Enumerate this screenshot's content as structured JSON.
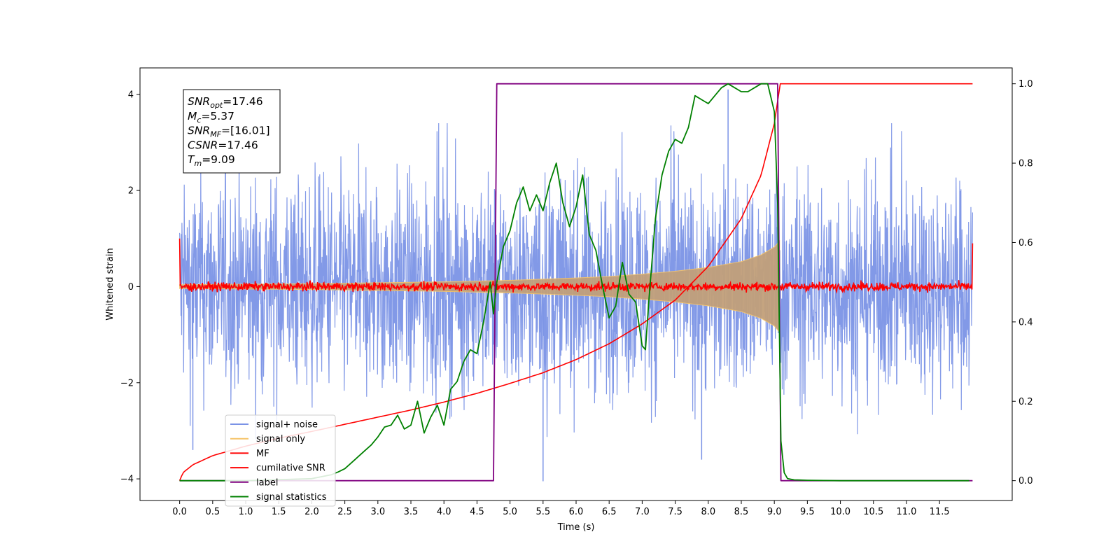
{
  "chart_data": {
    "type": "line",
    "xlabel": "Time (s)",
    "ylabel_left": "Whitened strain",
    "ylabel_right": "",
    "xlim": [
      -0.6,
      12.6
    ],
    "ylim_left": [
      -4.45,
      4.55
    ],
    "ylim_right": [
      -0.05,
      1.04
    ],
    "x_ticks": [
      0.0,
      0.5,
      1.0,
      1.5,
      2.0,
      2.5,
      3.0,
      3.5,
      4.0,
      4.5,
      5.0,
      5.5,
      6.0,
      6.5,
      7.0,
      7.5,
      8.0,
      8.5,
      9.0,
      9.5,
      10.0,
      10.5,
      11.0,
      11.5
    ],
    "x_tick_labels": [
      "0.0",
      "0.5",
      "1.0",
      "1.5",
      "2.0",
      "2.5",
      "3.0",
      "3.5",
      "4.0",
      "4.5",
      "5.0",
      "5.5",
      "6.0",
      "6.5",
      "7.0",
      "7.5",
      "8.0",
      "8.5",
      "9.0",
      "9.5",
      "10.0",
      "10.5",
      "11.0",
      "11.5"
    ],
    "y_ticks_left": [
      -4,
      -2,
      0,
      2,
      4
    ],
    "y_tick_labels_left": [
      "−4",
      "−2",
      "0",
      "2",
      "4"
    ],
    "y_ticks_right": [
      0.0,
      0.2,
      0.4,
      0.6,
      0.8,
      1.0
    ],
    "y_tick_labels_right": [
      "0.0",
      "0.2",
      "0.4",
      "0.6",
      "0.8",
      "1.0"
    ],
    "grid": false,
    "legend_position": "lower-left",
    "annotation_box": [
      {
        "base": "SNR",
        "sub": "opt",
        "value": "=17.46"
      },
      {
        "base": "M",
        "sub": "c",
        "value": "=5.37"
      },
      {
        "base": "SNR",
        "sub": "MF",
        "value": "=[16.01]"
      },
      {
        "base": "CSNR",
        "sub": "",
        "value": "=17.46"
      },
      {
        "base": "T",
        "sub": "m",
        "value": "=9.09"
      }
    ],
    "series": [
      {
        "name": "signal+ noise",
        "axis": "left",
        "color": "#7b93e6",
        "kind": "noise band",
        "x_range": [
          0.0,
          12.0
        ],
        "typical_range": [
          -1.8,
          1.8
        ],
        "peaks": [
          {
            "x": 8.3,
            "y": 4.1
          },
          {
            "x": 5.5,
            "y": -4.05
          },
          {
            "x": 7.9,
            "y": -3.6
          },
          {
            "x": 0.2,
            "y": -3.4
          }
        ]
      },
      {
        "name": "signal only",
        "axis": "left",
        "color": "#f5c469",
        "kind": "chirp envelope",
        "x": [
          0.0,
          2.0,
          4.0,
          5.0,
          6.0,
          6.5,
          7.0,
          7.5,
          8.0,
          8.5,
          8.8,
          9.0,
          9.08
        ],
        "envelope": [
          0.04,
          0.06,
          0.1,
          0.13,
          0.18,
          0.21,
          0.26,
          0.32,
          0.4,
          0.52,
          0.66,
          0.82,
          0.95
        ]
      },
      {
        "name": "MF",
        "axis": "left",
        "color": "#ff0000",
        "kind": "noise trace",
        "x_range": [
          0.0,
          12.0
        ],
        "typical_range": [
          -0.1,
          0.1
        ],
        "edge_values": [
          {
            "x": 0.0,
            "y": 1.0
          },
          {
            "x": 12.0,
            "y": 0.9
          }
        ]
      },
      {
        "name": "cumilative SNR",
        "axis": "right",
        "color": "#ff0000",
        "x": [
          0.0,
          0.05,
          0.2,
          0.5,
          1.0,
          1.5,
          2.0,
          2.5,
          3.0,
          3.5,
          4.0,
          4.5,
          5.0,
          5.5,
          6.0,
          6.5,
          7.0,
          7.5,
          8.0,
          8.5,
          8.8,
          9.0,
          9.09,
          12.0
        ],
        "values": [
          0.0,
          0.02,
          0.04,
          0.063,
          0.087,
          0.107,
          0.124,
          0.142,
          0.16,
          0.178,
          0.198,
          0.22,
          0.245,
          0.272,
          0.305,
          0.345,
          0.395,
          0.455,
          0.54,
          0.66,
          0.77,
          0.9,
          1.0,
          1.0
        ]
      },
      {
        "name": "label",
        "axis": "right",
        "color": "#800080",
        "x": [
          0.0,
          4.75,
          4.8,
          9.05,
          9.1,
          12.0
        ],
        "values": [
          0.0,
          0.0,
          1.0,
          1.0,
          0.0,
          0.0
        ]
      },
      {
        "name": "signal statistics",
        "axis": "right",
        "color": "#008000",
        "x": [
          0.0,
          1.0,
          2.0,
          2.3,
          2.4,
          2.5,
          2.6,
          2.7,
          2.8,
          2.9,
          3.0,
          3.1,
          3.2,
          3.3,
          3.4,
          3.5,
          3.6,
          3.7,
          3.8,
          3.9,
          4.0,
          4.1,
          4.2,
          4.3,
          4.4,
          4.5,
          4.6,
          4.7,
          4.75,
          4.8,
          4.9,
          5.0,
          5.1,
          5.2,
          5.3,
          5.4,
          5.5,
          5.6,
          5.7,
          5.8,
          5.9,
          6.0,
          6.1,
          6.2,
          6.3,
          6.4,
          6.5,
          6.6,
          6.7,
          6.8,
          6.9,
          7.0,
          7.05,
          7.1,
          7.2,
          7.3,
          7.4,
          7.5,
          7.6,
          7.7,
          7.8,
          7.9,
          8.0,
          8.1,
          8.2,
          8.3,
          8.4,
          8.5,
          8.6,
          8.7,
          8.8,
          8.9,
          9.0,
          9.05,
          9.1,
          9.15,
          9.2,
          9.3,
          9.5,
          10.0,
          11.0,
          11.95
        ],
        "values": [
          0.0,
          0.0,
          0.005,
          0.015,
          0.022,
          0.03,
          0.045,
          0.06,
          0.075,
          0.09,
          0.11,
          0.135,
          0.14,
          0.165,
          0.13,
          0.14,
          0.2,
          0.12,
          0.16,
          0.19,
          0.14,
          0.23,
          0.25,
          0.3,
          0.33,
          0.32,
          0.4,
          0.5,
          0.42,
          0.5,
          0.59,
          0.63,
          0.7,
          0.74,
          0.68,
          0.72,
          0.68,
          0.75,
          0.8,
          0.7,
          0.64,
          0.69,
          0.77,
          0.62,
          0.58,
          0.49,
          0.41,
          0.44,
          0.55,
          0.47,
          0.45,
          0.34,
          0.33,
          0.45,
          0.66,
          0.77,
          0.83,
          0.86,
          0.85,
          0.89,
          0.97,
          0.96,
          0.95,
          0.97,
          0.99,
          1.0,
          0.99,
          0.98,
          0.98,
          0.99,
          1.0,
          1.0,
          0.93,
          0.7,
          0.1,
          0.02,
          0.005,
          0.002,
          0.001,
          0.0,
          0.0,
          0.0
        ]
      }
    ]
  }
}
